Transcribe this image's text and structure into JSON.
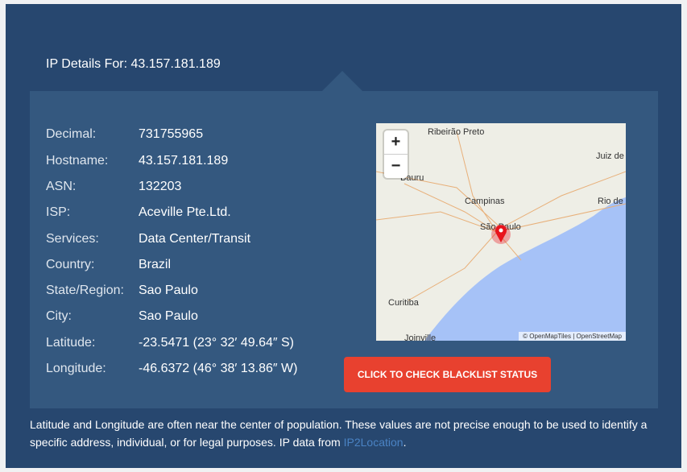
{
  "header": {
    "title": "IP Details For: 43.157.181.189"
  },
  "details": [
    {
      "label": "Decimal:",
      "value": "731755965"
    },
    {
      "label": "Hostname:",
      "value": "43.157.181.189"
    },
    {
      "label": "ASN:",
      "value": "132203"
    },
    {
      "label": "ISP:",
      "value": "Aceville Pte.Ltd."
    },
    {
      "label": "Services:",
      "value": "Data Center/Transit"
    },
    {
      "label": "Country:",
      "value": "Brazil"
    },
    {
      "label": "State/Region:",
      "value": "Sao Paulo"
    },
    {
      "label": "City:",
      "value": "Sao Paulo"
    },
    {
      "label": "Latitude:",
      "value": "-23.5471 (23° 32′ 49.64″ S)"
    },
    {
      "label": "Longitude:",
      "value": "-46.6372 (46° 38′ 13.86″ W)"
    }
  ],
  "map": {
    "zoom_in": "+",
    "zoom_out": "−",
    "cities": [
      "Ribeirão Preto",
      "Juiz de",
      "Bauru",
      "Campinas",
      "Rio de",
      "São Paulo",
      "Curitiba",
      "Joinville"
    ],
    "attribution": "© OpenMapTiles | OpenStreetMap",
    "marker_color": "#e8141c"
  },
  "button": {
    "label": "CLICK TO CHECK BLACKLIST STATUS",
    "color": "#e8412f"
  },
  "footer": {
    "text": "Latitude and Longitude are often near the center of population. These values are not precise enough to be used to identify a specific address, individual, or for legal purposes. IP data from ",
    "link": "IP2Location",
    "end": "."
  }
}
